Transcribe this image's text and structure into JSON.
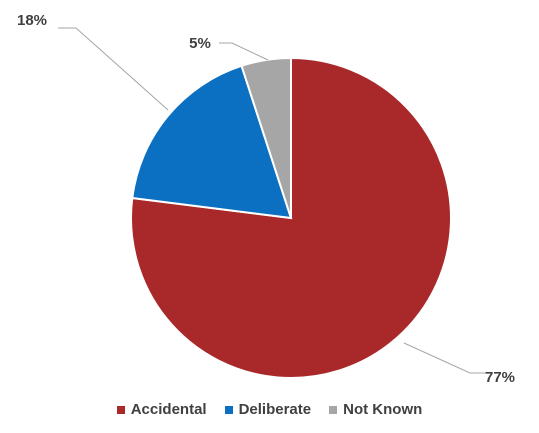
{
  "chart_data": {
    "type": "pie",
    "categories": [
      "Accidental",
      "Deliberate",
      "Not Known"
    ],
    "values": [
      77,
      18,
      5
    ],
    "labels": [
      "77%",
      "18%",
      "5%"
    ],
    "colors": [
      "#A9292B",
      "#0B6FC2",
      "#A6A6A6"
    ],
    "legend_position": "bottom"
  },
  "legend": {
    "items": [
      {
        "label": "Accidental",
        "color": "#A9292B"
      },
      {
        "label": "Deliberate",
        "color": "#0B6FC2"
      },
      {
        "label": "Not Known",
        "color": "#A6A6A6"
      }
    ]
  }
}
